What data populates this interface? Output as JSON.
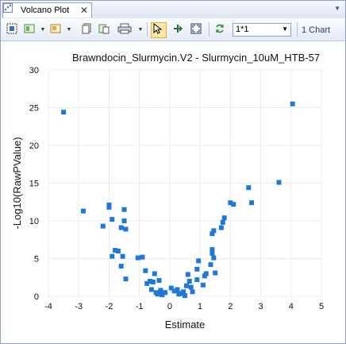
{
  "tab": {
    "title": "Volcano Plot",
    "close": "✕",
    "menu": "▼"
  },
  "toolbar": {
    "buttons": [
      {
        "name": "select-all-button",
        "icon": "grid-select-icon"
      },
      {
        "name": "layout-button",
        "icon": "layout-icon",
        "dropdown": true
      },
      {
        "name": "color-button",
        "icon": "palette-icon",
        "dropdown": true
      },
      {
        "name": "copy-button",
        "icon": "copy-icon"
      },
      {
        "name": "paste-button",
        "icon": "paste-icon"
      },
      {
        "name": "print-button",
        "icon": "printer-icon",
        "dropdown": true
      },
      {
        "name": "pointer-tool-button",
        "icon": "cursor-icon",
        "active": true
      },
      {
        "name": "pan-tool-button",
        "icon": "pan-icon"
      },
      {
        "name": "zoom-fit-button",
        "icon": "fit-icon"
      },
      {
        "name": "refresh-button",
        "icon": "refresh-icon"
      }
    ],
    "zoom_value": "1*1",
    "chart_count": "1 Chart"
  },
  "chart_data": {
    "type": "scatter",
    "title": "Brawndocin_Slurmycin.V2 - Slurmycin_10uM_HTB-57",
    "xlabel": "Estimate",
    "ylabel": "-Log10(RawPValue)",
    "xlim": [
      -4,
      5
    ],
    "ylim": [
      0,
      30
    ],
    "xticks": [
      "-4",
      "-3",
      "-2",
      "-1",
      "0",
      "1",
      "2",
      "3",
      "4",
      "5"
    ],
    "yticks": [
      "0",
      "5",
      "10",
      "15",
      "20",
      "25",
      "30"
    ],
    "grid": true,
    "color": "#1f78d8",
    "points": [
      [
        -3.5,
        24.4
      ],
      [
        4.05,
        25.5
      ],
      [
        -2.85,
        11.3
      ],
      [
        3.6,
        15.1
      ],
      [
        2.6,
        14.4
      ],
      [
        2.7,
        12.4
      ],
      [
        -2.0,
        12.1
      ],
      [
        -2.0,
        11.8
      ],
      [
        -1.5,
        11.5
      ],
      [
        -1.9,
        10.2
      ],
      [
        -1.5,
        10.0
      ],
      [
        -2.2,
        9.3
      ],
      [
        -1.6,
        9.1
      ],
      [
        -1.45,
        8.9
      ],
      [
        -1.8,
        6.1
      ],
      [
        -1.7,
        6.0
      ],
      [
        -1.9,
        5.3
      ],
      [
        -1.55,
        5.3
      ],
      [
        -1.6,
        4.0
      ],
      [
        -1.45,
        2.3
      ],
      [
        2.0,
        12.4
      ],
      [
        2.1,
        12.2
      ],
      [
        1.8,
        10.4
      ],
      [
        1.75,
        9.8
      ],
      [
        1.7,
        9.1
      ],
      [
        1.45,
        8.7
      ],
      [
        1.4,
        8.3
      ],
      [
        1.4,
        6.2
      ],
      [
        1.4,
        5.7
      ],
      [
        1.45,
        5.1
      ],
      [
        1.35,
        4.2
      ],
      [
        1.5,
        3.1
      ],
      [
        1.2,
        3.0
      ],
      [
        0.95,
        4.7
      ],
      [
        0.9,
        3.6
      ],
      [
        -0.9,
        5.2
      ],
      [
        -1.05,
        5.1
      ],
      [
        -0.8,
        3.4
      ],
      [
        -0.5,
        3.0
      ],
      [
        -0.65,
        2.0
      ],
      [
        -0.75,
        1.7
      ],
      [
        -0.55,
        1.9
      ],
      [
        -0.35,
        2.1
      ],
      [
        -0.6,
        0.9
      ],
      [
        -0.3,
        0.8
      ],
      [
        0.15,
        0.7
      ],
      [
        0.35,
        0.4
      ],
      [
        -0.15,
        0.5
      ],
      [
        0.05,
        1.1
      ],
      [
        0.25,
        0.9
      ],
      [
        0.45,
        0.6
      ],
      [
        0.55,
        1.4
      ],
      [
        0.6,
        2.9
      ],
      [
        0.65,
        2.0
      ],
      [
        0.7,
        1.2
      ],
      [
        0.9,
        2.2
      ],
      [
        1.1,
        1.5
      ],
      [
        1.15,
        2.7
      ],
      [
        -0.4,
        0.3
      ],
      [
        0.75,
        0.6
      ],
      [
        -0.25,
        0.2
      ],
      [
        0.5,
        0.1
      ],
      [
        -0.45,
        0.5
      ],
      [
        0.3,
        0.3
      ]
    ]
  }
}
